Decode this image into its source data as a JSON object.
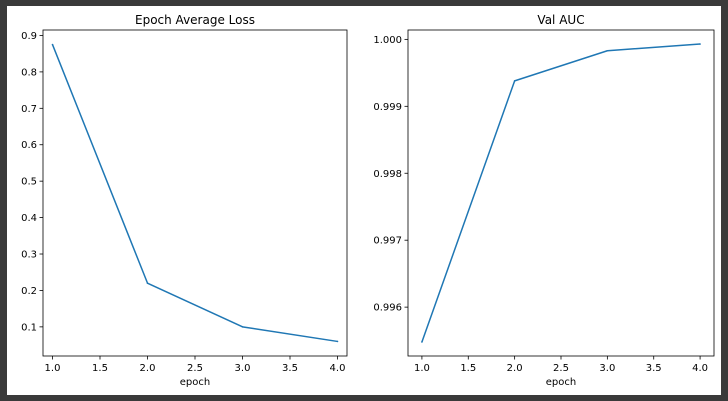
{
  "colors": {
    "background_outer": "#3a3a3a",
    "figure": "#ffffff",
    "line": "#1f77b4",
    "axis": "#000000"
  },
  "chart_data": [
    {
      "type": "line",
      "title": "Epoch Average Loss",
      "xlabel": "epoch",
      "ylabel": "",
      "x": [
        1.0,
        2.0,
        3.0,
        4.0
      ],
      "series": [
        {
          "values": [
            0.875,
            0.22,
            0.1,
            0.06
          ]
        }
      ],
      "xlim": [
        0.9,
        4.1
      ],
      "ylim": [
        0.02,
        0.915
      ],
      "xticks": [
        1.0,
        1.5,
        2.0,
        2.5,
        3.0,
        3.5,
        4.0
      ],
      "xtick_labels": [
        "1.0",
        "1.5",
        "2.0",
        "2.5",
        "3.0",
        "3.5",
        "4.0"
      ],
      "yticks": [
        0.1,
        0.2,
        0.3,
        0.4,
        0.5,
        0.6,
        0.7,
        0.8,
        0.9
      ],
      "ytick_labels": [
        "0.1",
        "0.2",
        "0.3",
        "0.4",
        "0.5",
        "0.6",
        "0.7",
        "0.8",
        "0.9"
      ],
      "grid": false,
      "legend": "none"
    },
    {
      "type": "line",
      "title": "Val AUC",
      "xlabel": "epoch",
      "ylabel": "",
      "x": [
        1.0,
        2.0,
        3.0,
        4.0
      ],
      "series": [
        {
          "values": [
            0.99548,
            0.99938,
            0.99983,
            0.99993
          ]
        }
      ],
      "xlim": [
        0.85,
        4.15
      ],
      "ylim": [
        0.99527,
        1.00014
      ],
      "xticks": [
        1.0,
        1.5,
        2.0,
        2.5,
        3.0,
        3.5,
        4.0
      ],
      "xtick_labels": [
        "1.0",
        "1.5",
        "2.0",
        "2.5",
        "3.0",
        "3.5",
        "4.0"
      ],
      "yticks": [
        0.996,
        0.997,
        0.998,
        0.999,
        1.0
      ],
      "ytick_labels": [
        "0.996",
        "0.997",
        "0.998",
        "0.999",
        "1.000"
      ],
      "grid": false,
      "legend": "none"
    }
  ]
}
